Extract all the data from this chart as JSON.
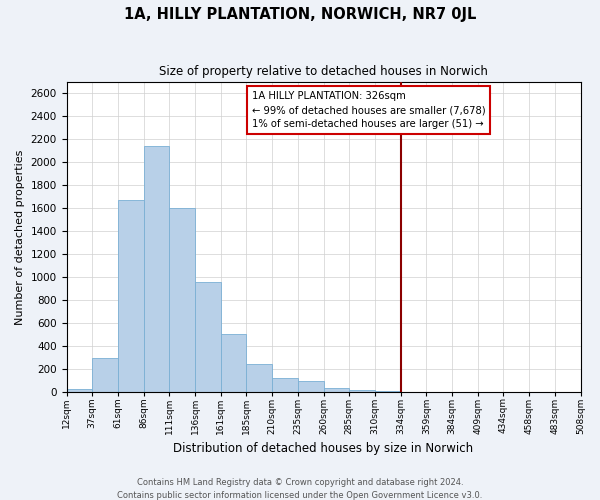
{
  "title": "1A, HILLY PLANTATION, NORWICH, NR7 0JL",
  "subtitle": "Size of property relative to detached houses in Norwich",
  "xlabel": "Distribution of detached houses by size in Norwich",
  "ylabel": "Number of detached properties",
  "bar_values": [
    20,
    290,
    1670,
    2140,
    1600,
    960,
    500,
    240,
    120,
    90,
    30,
    15,
    5,
    2,
    1,
    1,
    1,
    1,
    1,
    1
  ],
  "bar_labels": [
    "12sqm",
    "37sqm",
    "61sqm",
    "86sqm",
    "111sqm",
    "136sqm",
    "161sqm",
    "185sqm",
    "210sqm",
    "235sqm",
    "260sqm",
    "285sqm",
    "310sqm",
    "334sqm",
    "359sqm",
    "384sqm",
    "409sqm",
    "434sqm",
    "458sqm",
    "483sqm",
    "508sqm"
  ],
  "ylim": [
    0,
    2700
  ],
  "yticks": [
    0,
    200,
    400,
    600,
    800,
    1000,
    1200,
    1400,
    1600,
    1800,
    2000,
    2200,
    2400,
    2600
  ],
  "bar_color": "#b8d0e8",
  "bar_edge_color": "#7aafd4",
  "vline_color": "#8b0000",
  "vline_bar_index": 13,
  "annotation_title": "1A HILLY PLANTATION: 326sqm",
  "annotation_line1": "← 99% of detached houses are smaller (7,678)",
  "annotation_line2": "1% of semi-detached houses are larger (51) →",
  "annotation_box_color": "#ffffff",
  "annotation_border_color": "#cc0000",
  "footer_line1": "Contains HM Land Registry data © Crown copyright and database right 2024.",
  "footer_line2": "Contains public sector information licensed under the Open Government Licence v3.0.",
  "background_color": "#eef2f8",
  "plot_bg_color": "#ffffff",
  "grid_color": "#d0d0d0"
}
